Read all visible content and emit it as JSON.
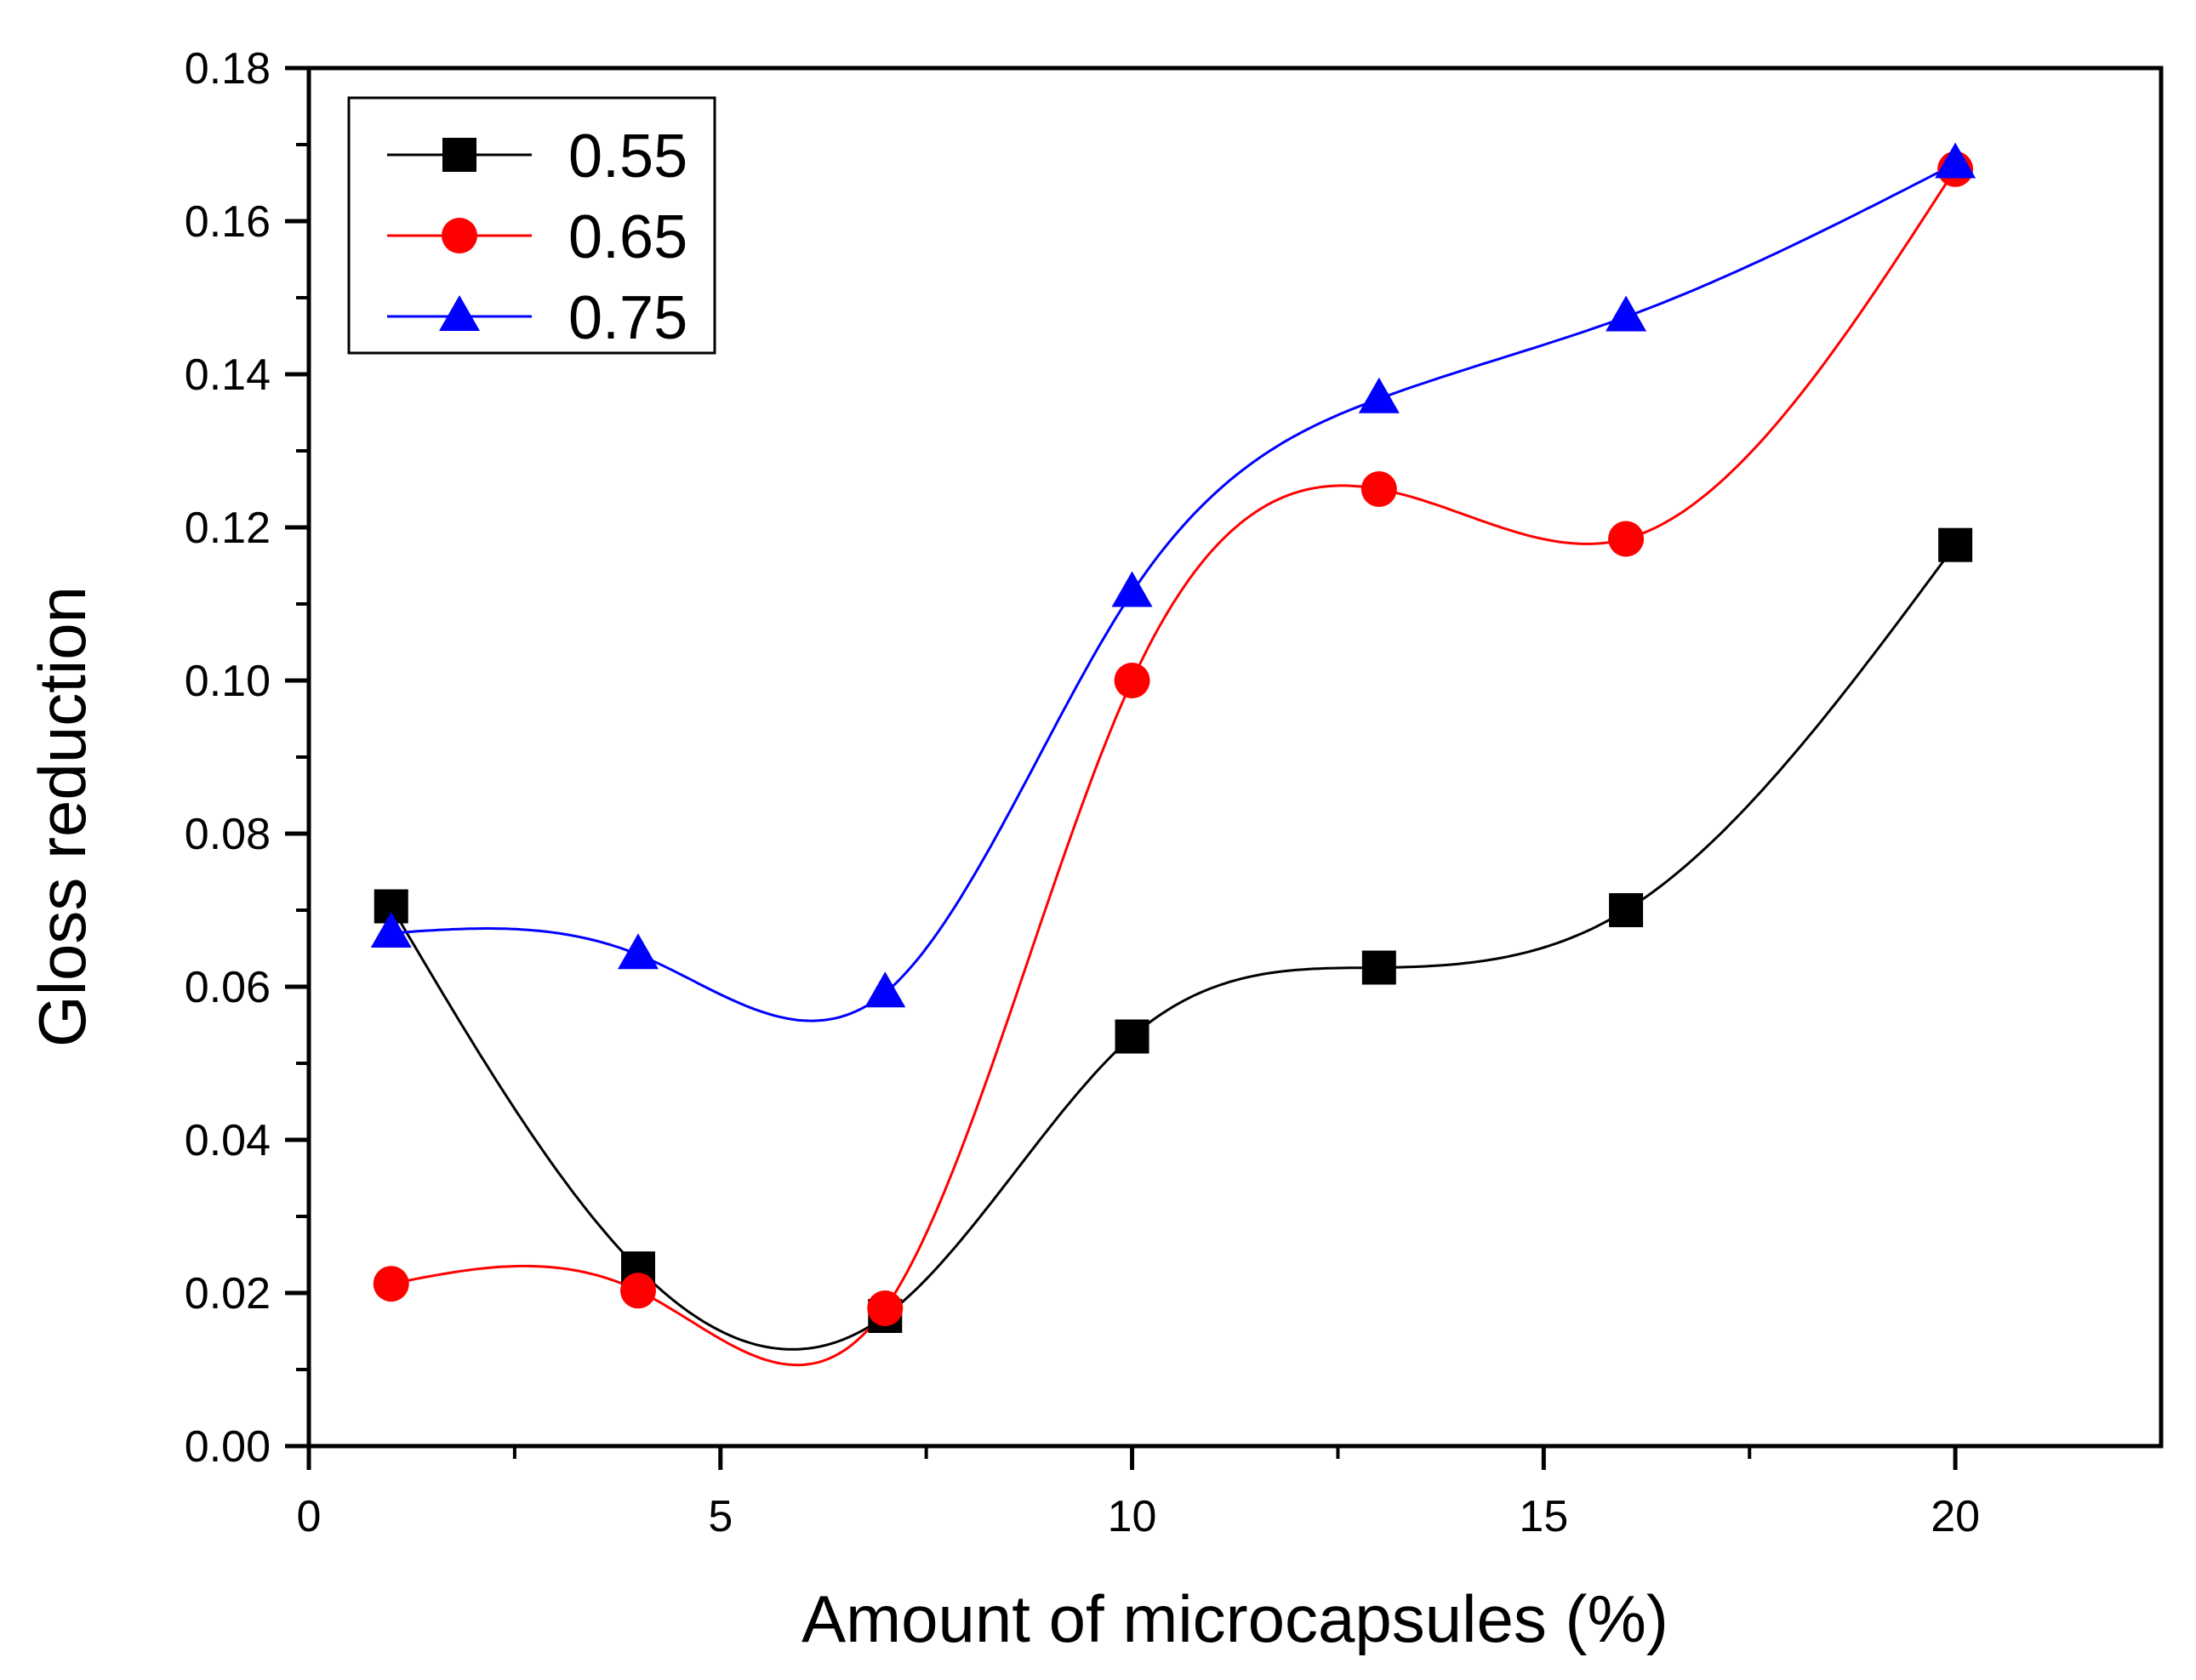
{
  "chart_data": {
    "type": "line",
    "title": "",
    "xlabel": "Amount of microcapsules (%)",
    "ylabel": "Gloss reduction",
    "xlim": [
      0,
      22.5
    ],
    "ylim": [
      0,
      0.18
    ],
    "x_ticks": [
      0,
      5,
      10,
      15,
      20
    ],
    "x_tick_labels": [
      "0",
      "5",
      "10",
      "15",
      "20"
    ],
    "y_ticks": [
      0,
      0.02,
      0.04,
      0.06,
      0.08,
      0.1,
      0.12,
      0.14,
      0.16,
      0.18
    ],
    "y_tick_labels": [
      "0.00",
      "0.02",
      "0.04",
      "0.06",
      "0.08",
      "0.10",
      "0.12",
      "0.14",
      "0.16",
      "0.18"
    ],
    "grid": false,
    "legend_position": "top-left",
    "smooth": true,
    "x": [
      1,
      4,
      7,
      10,
      13,
      16,
      20
    ],
    "series": [
      {
        "name": "0.55",
        "color": "#000000",
        "marker": "square",
        "values": [
          0.0705,
          0.0232,
          0.017,
          0.0535,
          0.0625,
          0.07,
          0.1177
        ]
      },
      {
        "name": "0.65",
        "color": "#ff0000",
        "marker": "circle",
        "values": [
          0.0212,
          0.0203,
          0.018,
          0.1,
          0.125,
          0.1185,
          0.1668
        ]
      },
      {
        "name": "0.75",
        "color": "#0000ff",
        "marker": "triangle",
        "values": [
          0.067,
          0.0642,
          0.0592,
          0.1115,
          0.1368,
          0.1475,
          0.1675
        ]
      }
    ]
  }
}
